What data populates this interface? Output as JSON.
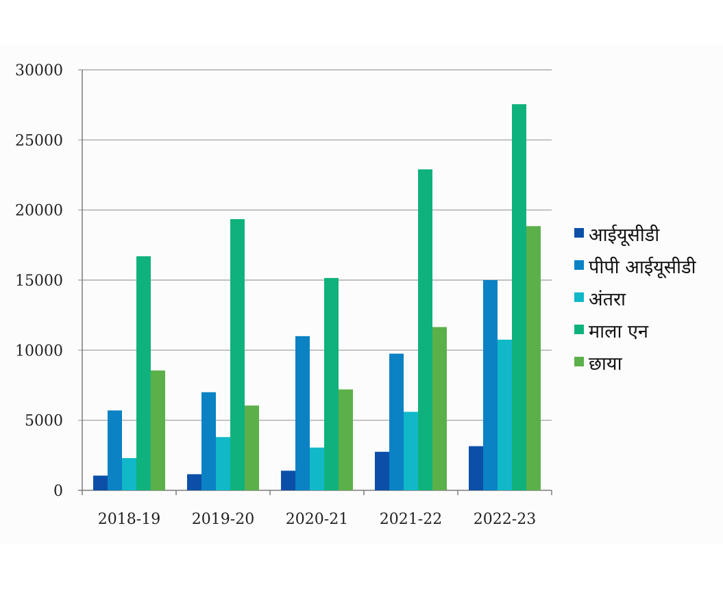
{
  "chart_data": {
    "type": "bar",
    "title": "",
    "xlabel": "",
    "ylabel": "",
    "categories": [
      "2018-19",
      "2019-20",
      "2020-21",
      "2021-22",
      "2022-23"
    ],
    "ylim": [
      0,
      30000
    ],
    "yticks": [
      0,
      5000,
      10000,
      15000,
      20000,
      25000,
      30000
    ],
    "grid": true,
    "legend_position": "right",
    "series": [
      {
        "name": "आईयूसीडी",
        "color": "#0b4fa8",
        "values": [
          1050,
          1150,
          1400,
          2750,
          3150
        ]
      },
      {
        "name": "पीपी आईयूसीडी",
        "color": "#0a82c4",
        "values": [
          5700,
          7000,
          11000,
          9750,
          15000
        ]
      },
      {
        "name": "अंतरा",
        "color": "#10b8c8",
        "values": [
          2300,
          3800,
          3050,
          5600,
          10750
        ]
      },
      {
        "name": "माला एन",
        "color": "#0fb27c",
        "values": [
          16700,
          19350,
          15150,
          22900,
          27550
        ]
      },
      {
        "name": "छाया",
        "color": "#5cb04a",
        "values": [
          8550,
          6050,
          7200,
          11650,
          18850
        ]
      }
    ]
  }
}
